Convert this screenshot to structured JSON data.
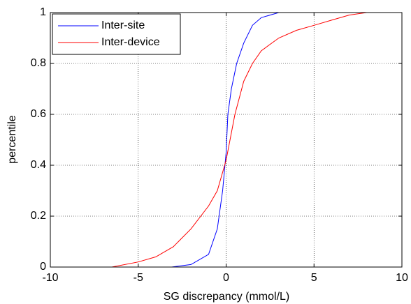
{
  "chart_data": {
    "type": "line",
    "xlabel": "SG discrepancy (mmol/L)",
    "ylabel": "percentile",
    "xlim": [
      -10,
      10
    ],
    "xticks": [
      -10,
      -5,
      0,
      5,
      10
    ],
    "ylim": [
      0,
      1
    ],
    "yticks": [
      0,
      0.2,
      0.4,
      0.6,
      0.8,
      1
    ],
    "grid": true,
    "legend": "upper left",
    "series": [
      {
        "name": "Inter-site",
        "color": "#0000ff",
        "x": [
          -3.1,
          -2,
          -1,
          -0.5,
          -0.2,
          0,
          0.1,
          0.3,
          0.6,
          1,
          1.5,
          2,
          3,
          10
        ],
        "values": [
          0,
          0.01,
          0.05,
          0.15,
          0.3,
          0.45,
          0.6,
          0.7,
          0.8,
          0.88,
          0.95,
          0.98,
          1,
          1
        ]
      },
      {
        "name": "Inter-device",
        "color": "#ff0000",
        "x": [
          -6.5,
          -5,
          -4,
          -3,
          -2,
          -1,
          -0.5,
          0,
          0.5,
          1,
          1.5,
          2,
          3,
          4,
          5,
          6,
          7,
          8,
          10
        ],
        "values": [
          0,
          0.02,
          0.04,
          0.08,
          0.15,
          0.24,
          0.3,
          0.42,
          0.6,
          0.73,
          0.8,
          0.85,
          0.9,
          0.93,
          0.95,
          0.97,
          0.99,
          1,
          1
        ]
      }
    ]
  }
}
